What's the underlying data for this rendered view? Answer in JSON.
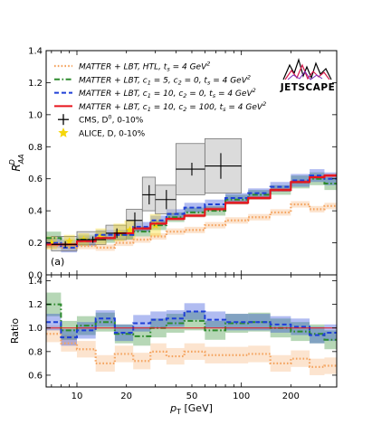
{
  "figure": {
    "panel_label": "(a)",
    "logo_text": "JETSCAPE"
  },
  "colors": {
    "htl": "#f4a460",
    "c1_5": "#2e8b2e",
    "c1_10": "#1f3fd6",
    "c2_100": "#e8141c",
    "cms": "#000000",
    "alice": "#f5d60a",
    "cms_box": "#bdbdbd"
  },
  "chart_data": [
    {
      "type": "line",
      "panel": "top",
      "xlabel": "",
      "ylabel": "R_AA^D",
      "xscale": "log",
      "xlim": [
        6.5,
        380
      ],
      "ylim": [
        0.0,
        1.4
      ],
      "yticks": [
        0.0,
        0.2,
        0.4,
        0.6,
        0.8,
        1.0,
        1.2,
        1.4
      ],
      "bin_edges": [
        6.5,
        8,
        10,
        13,
        17,
        22,
        28,
        35,
        45,
        60,
        80,
        110,
        150,
        200,
        260,
        320,
        380
      ],
      "series": [
        {
          "name": "MATTER + LBT, HTL, t_s = 4 GeV^2",
          "style": "dotted",
          "color_key": "htl",
          "values": [
            0.18,
            0.17,
            0.18,
            0.17,
            0.2,
            0.22,
            0.24,
            0.27,
            0.28,
            0.31,
            0.34,
            0.36,
            0.39,
            0.44,
            0.41,
            0.43
          ],
          "band": [
            0.02,
            0.02,
            0.02,
            0.02,
            0.02,
            0.02,
            0.02,
            0.02,
            0.02,
            0.02,
            0.02,
            0.02,
            0.02,
            0.02,
            0.02,
            0.02
          ]
        },
        {
          "name": "MATTER + LBT, c1 = 5, c2 = 0, t_s = 4 GeV^2",
          "style": "dashdot",
          "color_key": "c1_5",
          "values": [
            0.23,
            0.19,
            0.22,
            0.23,
            0.25,
            0.27,
            0.31,
            0.36,
            0.39,
            0.4,
            0.47,
            0.5,
            0.53,
            0.58,
            0.6,
            0.57
          ],
          "band": [
            0.04,
            0.03,
            0.03,
            0.03,
            0.03,
            0.03,
            0.03,
            0.03,
            0.03,
            0.03,
            0.03,
            0.03,
            0.03,
            0.04,
            0.04,
            0.04
          ]
        },
        {
          "name": "MATTER + LBT, c1 = 10, c2 = 0, t_s = 4 GeV^2",
          "style": "dashed",
          "color_key": "c1_10",
          "values": [
            0.2,
            0.17,
            0.21,
            0.25,
            0.25,
            0.3,
            0.34,
            0.38,
            0.42,
            0.44,
            0.48,
            0.51,
            0.55,
            0.59,
            0.62,
            0.6
          ],
          "band": [
            0.03,
            0.03,
            0.03,
            0.03,
            0.03,
            0.03,
            0.03,
            0.03,
            0.03,
            0.03,
            0.03,
            0.03,
            0.03,
            0.04,
            0.04,
            0.04
          ]
        },
        {
          "name": "MATTER + LBT, c1 = 10, c2 = 100, t_s = 4 GeV^2",
          "style": "solid",
          "color_key": "c2_100",
          "values": [
            0.19,
            0.19,
            0.21,
            0.23,
            0.26,
            0.29,
            0.32,
            0.35,
            0.37,
            0.41,
            0.45,
            0.48,
            0.53,
            0.58,
            0.61,
            0.62
          ],
          "band": [
            0.01,
            0.01,
            0.01,
            0.01,
            0.01,
            0.01,
            0.01,
            0.01,
            0.01,
            0.01,
            0.01,
            0.01,
            0.01,
            0.01,
            0.01,
            0.01
          ]
        }
      ],
      "cms": {
        "name": "CMS, D^0, 0-10%",
        "x": [
          8.5,
          12.5,
          17.5,
          22.5,
          27.5,
          35,
          50,
          75
        ],
        "y": [
          0.19,
          0.22,
          0.26,
          0.34,
          0.5,
          0.47,
          0.66,
          0.68
        ],
        "xlo": [
          7.0,
          10.0,
          15.0,
          20.0,
          25.0,
          30.0,
          40.0,
          60.0
        ],
        "xhi": [
          10.0,
          15.0,
          20.0,
          25.0,
          30.0,
          40.0,
          60.0,
          100.0
        ],
        "stat": [
          0.02,
          0.02,
          0.03,
          0.05,
          0.06,
          0.06,
          0.04,
          0.08
        ],
        "sys_lo": [
          0.15,
          0.19,
          0.22,
          0.28,
          0.4,
          0.38,
          0.5,
          0.51
        ],
        "sys_hi": [
          0.24,
          0.27,
          0.31,
          0.41,
          0.61,
          0.56,
          0.82,
          0.85
        ]
      },
      "alice": {
        "name": "ALICE, D, 0-10%",
        "x": [
          7,
          9,
          11,
          14,
          18,
          21,
          30
        ],
        "y": [
          0.2,
          0.21,
          0.22,
          0.24,
          0.26,
          0.28,
          0.31
        ],
        "sys_lo": [
          0.16,
          0.17,
          0.18,
          0.19,
          0.21,
          0.22,
          0.24
        ],
        "sys_hi": [
          0.24,
          0.25,
          0.26,
          0.29,
          0.32,
          0.34,
          0.38
        ]
      }
    },
    {
      "type": "line",
      "panel": "bottom",
      "xlabel": "p_T [GeV]",
      "ylabel": "Ratio",
      "xscale": "log",
      "xlim": [
        6.5,
        380
      ],
      "ylim": [
        0.5,
        1.45
      ],
      "yticks": [
        0.6,
        0.8,
        1.0,
        1.2,
        1.4
      ],
      "xticks": [
        10,
        20,
        50,
        100,
        200
      ],
      "reference_line": 1.0,
      "bin_edges": [
        6.5,
        8,
        10,
        13,
        17,
        22,
        28,
        35,
        45,
        60,
        80,
        110,
        150,
        200,
        260,
        320,
        380
      ],
      "series": [
        {
          "name": "MATTER + LBT, HTL, t_s = 4 GeV^2",
          "style": "dotted",
          "color_key": "htl",
          "values": [
            0.95,
            0.87,
            0.82,
            0.7,
            0.78,
            0.72,
            0.8,
            0.76,
            0.8,
            0.77,
            0.77,
            0.78,
            0.7,
            0.74,
            0.67,
            0.68
          ],
          "band": [
            0.07,
            0.07,
            0.07,
            0.07,
            0.07,
            0.07,
            0.07,
            0.07,
            0.07,
            0.07,
            0.07,
            0.07,
            0.07,
            0.07,
            0.07,
            0.07
          ]
        },
        {
          "name": "MATTER + LBT, c1 = 5, c2 = 0, t_s = 4 GeV^2",
          "style": "dashdot",
          "color_key": "c1_5",
          "values": [
            1.2,
            0.98,
            1.02,
            1.05,
            0.95,
            0.93,
            1.0,
            1.04,
            1.06,
            0.98,
            1.04,
            1.05,
            1.0,
            0.97,
            0.95,
            0.9
          ],
          "band": [
            0.1,
            0.08,
            0.08,
            0.08,
            0.08,
            0.08,
            0.08,
            0.08,
            0.08,
            0.08,
            0.08,
            0.08,
            0.08,
            0.08,
            0.08,
            0.08
          ]
        },
        {
          "name": "MATTER + LBT, c1 = 10, c2 = 0, t_s = 4 GeV^2",
          "style": "dashed",
          "color_key": "c1_10",
          "values": [
            1.05,
            0.92,
            0.98,
            1.08,
            0.96,
            1.04,
            1.07,
            1.08,
            1.14,
            1.07,
            1.05,
            1.05,
            1.03,
            1.01,
            0.94,
            0.96
          ],
          "band": [
            0.07,
            0.07,
            0.07,
            0.07,
            0.07,
            0.07,
            0.07,
            0.07,
            0.07,
            0.07,
            0.07,
            0.07,
            0.07,
            0.07,
            0.07,
            0.07
          ]
        }
      ]
    }
  ],
  "legend": [
    {
      "key": "htl",
      "style": "dotted",
      "text": "MATTER + LBT,  HTL,  t",
      "sub": "s",
      "tail": " = 4 GeV",
      "sup": "2"
    },
    {
      "key": "c1_5",
      "style": "dashdot",
      "text": "MATTER + LBT,  c",
      "sub": "1",
      "tail": " = 5, c",
      "sub2": "2",
      "tail2": " = 0,  t",
      "sub3": "s",
      "tail3": " = 4 GeV",
      "sup": "2"
    },
    {
      "key": "c1_10",
      "style": "dashed",
      "text": "MATTER + LBT,  c",
      "sub": "1",
      "tail": " = 10, c",
      "sub2": "2",
      "tail2": " = 0,  t",
      "sub3": "s",
      "tail3": " = 4 GeV",
      "sup": "2"
    },
    {
      "key": "c2_100",
      "style": "solid",
      "text": "MATTER + LBT,  c",
      "sub": "1",
      "tail": " = 10, c",
      "sub2": "2",
      "tail2": " = 100,  t",
      "sub3": "s",
      "tail3": " = 4 GeV",
      "sup": "2"
    },
    {
      "key": "cms",
      "style": "cross",
      "text": "CMS, D",
      "sup": "0",
      "tail": ", 0-10%"
    },
    {
      "key": "alice",
      "style": "star",
      "text": "ALICE, D, 0-10%"
    }
  ]
}
